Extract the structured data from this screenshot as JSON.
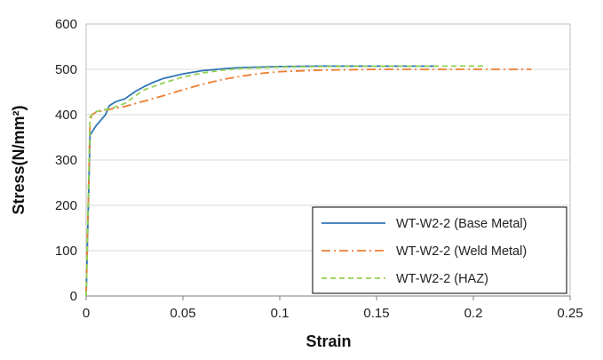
{
  "chart_data": {
    "type": "line",
    "title": "",
    "xlabel": "Strain",
    "ylabel": "Stress(N/mm²)",
    "xlim": [
      0,
      0.25
    ],
    "ylim": [
      0,
      600
    ],
    "xticks": [
      0,
      0.05,
      0.1,
      0.15,
      0.2,
      0.25
    ],
    "xtick_labels": [
      "0",
      "0.05",
      "0.1",
      "0.15",
      "0.2",
      "0.25"
    ],
    "yticks": [
      0,
      100,
      200,
      300,
      400,
      500,
      600
    ],
    "ytick_labels": [
      "0",
      "100",
      "200",
      "300",
      "400",
      "500",
      "600"
    ],
    "grid": true,
    "legend_position": "bottom-right",
    "series": [
      {
        "name": "WT-W2-2 (Base Metal)",
        "color": "#2e75b6",
        "style": "solid",
        "x": [
          0,
          0.002,
          0.005,
          0.01,
          0.012,
          0.015,
          0.02,
          0.025,
          0.03,
          0.035,
          0.04,
          0.05,
          0.06,
          0.07,
          0.08,
          0.1,
          0.12,
          0.15,
          0.18
        ],
        "y": [
          0,
          355,
          375,
          400,
          420,
          428,
          435,
          450,
          462,
          472,
          480,
          490,
          497,
          501,
          504,
          506,
          507,
          507,
          507
        ]
      },
      {
        "name": "WT-W2-2 (Weld Metal)",
        "color": "#ed7d31",
        "style": "dashdot",
        "x": [
          0,
          0.002,
          0.003,
          0.005,
          0.01,
          0.02,
          0.03,
          0.04,
          0.05,
          0.06,
          0.07,
          0.08,
          0.09,
          0.1,
          0.12,
          0.15,
          0.2,
          0.23
        ],
        "y": [
          0,
          385,
          400,
          405,
          410,
          418,
          430,
          442,
          455,
          467,
          477,
          485,
          491,
          495,
          498,
          500,
          500,
          500
        ]
      },
      {
        "name": "WT-W2-2 (HAZ)",
        "color": "#92d050",
        "style": "dashed",
        "x": [
          0,
          0.002,
          0.004,
          0.008,
          0.012,
          0.015,
          0.02,
          0.025,
          0.03,
          0.04,
          0.05,
          0.06,
          0.07,
          0.08,
          0.1,
          0.12,
          0.15,
          0.2,
          0.205
        ],
        "y": [
          0,
          395,
          405,
          410,
          413,
          417,
          425,
          440,
          455,
          470,
          483,
          492,
          498,
          502,
          505,
          506,
          507,
          507,
          507
        ]
      }
    ]
  }
}
